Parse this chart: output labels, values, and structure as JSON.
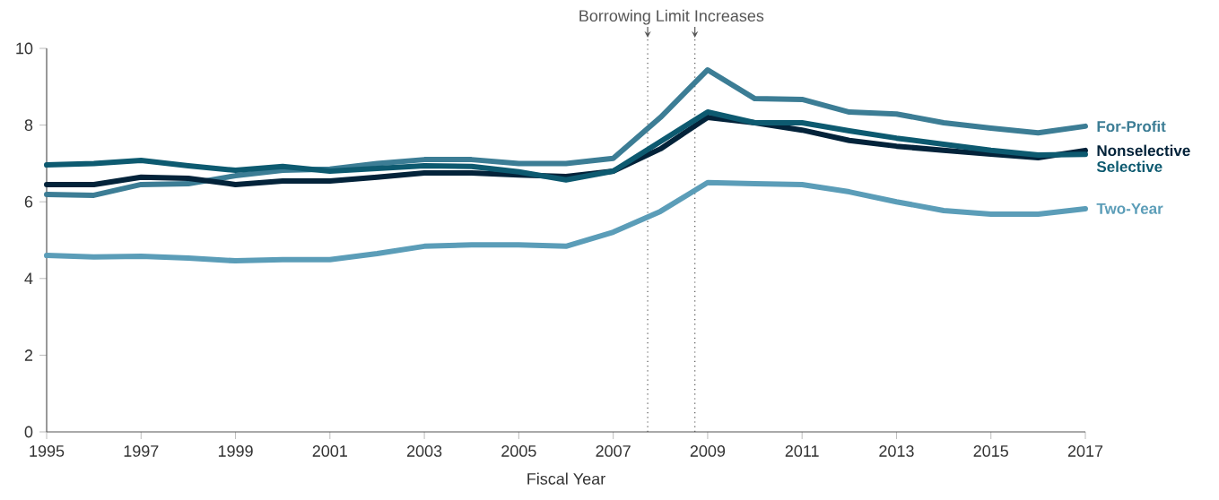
{
  "chart_data": {
    "type": "line",
    "xlabel": "Fiscal Year",
    "x": [
      1995,
      1996,
      1997,
      1998,
      1999,
      2000,
      2001,
      2002,
      2003,
      2004,
      2005,
      2006,
      2007,
      2008,
      2009,
      2010,
      2011,
      2012,
      2013,
      2014,
      2015,
      2016,
      2017
    ],
    "series": [
      {
        "name": "For-Profit",
        "color": "#3c7d95",
        "values": [
          6.19,
          6.17,
          6.45,
          6.47,
          6.68,
          6.82,
          6.85,
          7.0,
          7.1,
          7.1,
          7.0,
          7.0,
          7.13,
          8.2,
          9.44,
          8.69,
          8.67,
          8.34,
          8.29,
          8.06,
          7.92,
          7.8,
          7.97
        ]
      },
      {
        "name": "Nonselective",
        "color": "#03233a",
        "values": [
          6.45,
          6.45,
          6.64,
          6.61,
          6.45,
          6.54,
          6.54,
          6.64,
          6.75,
          6.75,
          6.7,
          6.66,
          6.8,
          7.38,
          8.2,
          8.06,
          7.87,
          7.6,
          7.45,
          7.34,
          7.24,
          7.15,
          7.34
        ]
      },
      {
        "name": "Selective",
        "color": "#0d5a70",
        "values": [
          6.96,
          7.0,
          7.08,
          6.94,
          6.82,
          6.92,
          6.8,
          6.87,
          6.94,
          6.92,
          6.78,
          6.57,
          6.8,
          7.57,
          8.34,
          8.06,
          8.06,
          7.85,
          7.66,
          7.5,
          7.34,
          7.22,
          7.24
        ]
      },
      {
        "name": "Two-Year",
        "color": "#5b9db8",
        "values": [
          4.6,
          4.56,
          4.58,
          4.53,
          4.46,
          4.49,
          4.49,
          4.65,
          4.84,
          4.88,
          4.88,
          4.84,
          5.21,
          5.75,
          6.5,
          6.47,
          6.45,
          6.26,
          6.0,
          5.77,
          5.68,
          5.68,
          5.82
        ]
      }
    ],
    "xlim": [
      1995,
      2017
    ],
    "ylim": [
      0,
      10
    ],
    "xticks": [
      1995,
      1997,
      1999,
      2001,
      2003,
      2005,
      2007,
      2009,
      2011,
      2013,
      2015,
      2017
    ],
    "yticks": [
      0,
      2,
      4,
      6,
      8,
      10
    ],
    "ref_lines": [
      {
        "axis": "x",
        "value": 2007.73,
        "line_style": "dotted",
        "color": "#555555"
      },
      {
        "axis": "x",
        "value": 2008.73,
        "line_style": "dotted",
        "color": "#555555"
      }
    ],
    "annotations": [
      "Borrowing Limit Increases"
    ],
    "grid": false,
    "marker": "none",
    "line_style": "solid"
  }
}
